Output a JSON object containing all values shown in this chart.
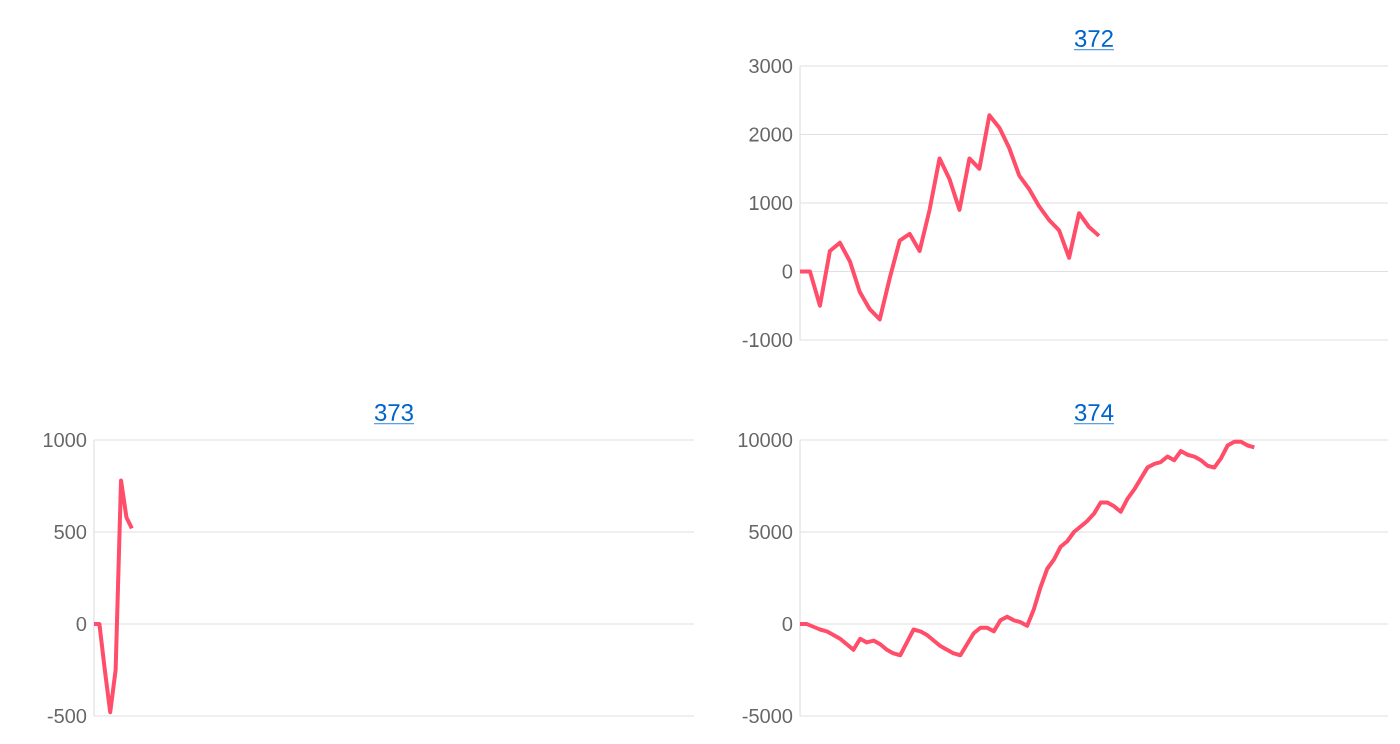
{
  "chart_data": [
    {
      "type": "line",
      "title": "372",
      "categories": [
        null,
        null,
        null,
        null,
        null,
        null,
        null,
        null,
        null,
        null,
        null,
        null,
        null,
        null,
        null,
        null,
        null,
        null,
        null,
        null,
        null,
        null,
        null,
        null,
        null,
        null,
        null,
        null,
        null,
        null,
        null,
        null,
        null,
        null,
        null,
        null,
        null,
        null,
        null,
        null,
        null,
        null,
        null,
        null,
        null,
        null,
        null,
        null,
        null,
        null,
        null,
        null,
        null,
        null,
        null,
        null,
        null,
        null,
        null,
        null
      ],
      "series": [
        {
          "color": "#ff4d6a",
          "values": [
            0,
            0,
            -500,
            300,
            420,
            150,
            -300,
            -550,
            -700,
            -100,
            450,
            550,
            300,
            900,
            1650,
            1350,
            900,
            1650,
            1500,
            2280,
            2100,
            1800,
            1400,
            1200,
            950,
            750,
            600,
            200,
            850,
            650,
            520,
            null,
            null,
            null,
            null,
            null,
            null,
            null,
            null,
            null,
            null,
            null,
            null,
            null,
            null,
            null,
            null,
            null,
            null,
            null,
            null,
            null,
            null,
            null,
            null,
            null,
            null,
            null,
            null,
            null
          ]
        }
      ],
      "ylim": [
        -1000,
        3000
      ],
      "yticks": [
        -1000,
        0,
        1000,
        2000,
        3000
      ],
      "grid": "y",
      "tick_labels": "y",
      "marker": "none"
    },
    {
      "type": "line",
      "title": "373",
      "categories": [
        null,
        null,
        null,
        null,
        null,
        null,
        null,
        null,
        null,
        null,
        null,
        null,
        null,
        null,
        null,
        null,
        null,
        null,
        null,
        null,
        null,
        null,
        null,
        null,
        null,
        null,
        null,
        null,
        null,
        null,
        null,
        null,
        null,
        null,
        null,
        null,
        null,
        null,
        null,
        null,
        null,
        null,
        null,
        null,
        null,
        null,
        null,
        null,
        null,
        null,
        null,
        null,
        null,
        null,
        null,
        null,
        null,
        null,
        null,
        null,
        null,
        null,
        null,
        null,
        null,
        null,
        null,
        null,
        null,
        null,
        null,
        null,
        null,
        null,
        null,
        null,
        null,
        null,
        null,
        null,
        null,
        null,
        null,
        null,
        null,
        null,
        null,
        null,
        null,
        null,
        null,
        null,
        null,
        null,
        null,
        null,
        null,
        null,
        null,
        null,
        null,
        null,
        null,
        null,
        null,
        null,
        null,
        null,
        null,
        null,
        null,
        null
      ],
      "series": [
        {
          "color": "#ff4d6a",
          "values": [
            0,
            0,
            -250,
            -480,
            -250,
            780,
            580,
            520,
            null,
            null,
            null,
            null,
            null,
            null,
            null,
            null,
            null,
            null,
            null,
            null,
            null,
            null,
            null,
            null,
            null,
            null,
            null,
            null,
            null,
            null,
            null,
            null,
            null,
            null,
            null,
            null,
            null,
            null,
            null,
            null,
            null,
            null,
            null,
            null,
            null,
            null,
            null,
            null,
            null,
            null,
            null,
            null,
            null,
            null,
            null,
            null,
            null,
            null,
            null,
            null,
            null,
            null,
            null,
            null,
            null,
            null,
            null,
            null,
            null,
            null,
            null,
            null,
            null,
            null,
            null,
            null,
            null,
            null,
            null,
            null,
            null,
            null,
            null,
            null,
            null,
            null,
            null,
            null,
            null,
            null,
            null,
            null,
            null,
            null,
            null,
            null,
            null,
            null,
            null,
            null,
            null,
            null,
            null,
            null,
            null,
            null,
            null,
            null,
            null,
            null,
            null,
            null
          ]
        }
      ],
      "ylim": [
        -500,
        1000
      ],
      "yticks": [
        -500,
        0,
        500,
        1000
      ],
      "grid": "y",
      "tick_labels": "y",
      "marker": "none"
    },
    {
      "type": "line",
      "title": "374",
      "categories": [
        null,
        null,
        null,
        null,
        null,
        null,
        null,
        null,
        null,
        null,
        null,
        null,
        null,
        null,
        null,
        null,
        null,
        null,
        null,
        null,
        null,
        null,
        null,
        null,
        null,
        null,
        null,
        null,
        null,
        null,
        null,
        null,
        null,
        null,
        null,
        null,
        null,
        null,
        null,
        null,
        null,
        null,
        null,
        null,
        null,
        null,
        null,
        null,
        null,
        null,
        null,
        null,
        null,
        null,
        null,
        null,
        null,
        null,
        null,
        null,
        null,
        null,
        null,
        null,
        null,
        null,
        null,
        null,
        null,
        null,
        null,
        null,
        null,
        null,
        null,
        null,
        null,
        null,
        null,
        null,
        null,
        null,
        null,
        null,
        null,
        null,
        null,
        null,
        null
      ],
      "series": [
        {
          "color": "#ff4d6a",
          "values": [
            0,
            0,
            -150,
            -300,
            -400,
            -600,
            -800,
            -1100,
            -1400,
            -800,
            -1000,
            -900,
            -1100,
            -1400,
            -1600,
            -1700,
            -1000,
            -300,
            -400,
            -600,
            -900,
            -1200,
            -1400,
            -1600,
            -1700,
            -1100,
            -500,
            -200,
            -200,
            -400,
            200,
            400,
            200,
            100,
            -100,
            800,
            2000,
            3000,
            3500,
            4200,
            4500,
            5000,
            5300,
            5600,
            6000,
            6600,
            6600,
            6400,
            6100,
            6800,
            7300,
            7900,
            8500,
            8700,
            8800,
            9100,
            8900,
            9400,
            9200,
            9100,
            8900,
            8600,
            8500,
            9000,
            9700,
            9900,
            9900,
            9700,
            9600,
            null,
            null,
            null,
            null,
            null,
            null,
            null,
            null,
            null,
            null,
            null,
            null,
            null,
            null,
            null,
            null,
            null,
            null,
            null,
            null
          ]
        }
      ],
      "ylim": [
        -5000,
        10000
      ],
      "yticks": [
        -5000,
        0,
        5000,
        10000
      ],
      "grid": "y",
      "tick_labels": "y",
      "marker": "none"
    }
  ]
}
